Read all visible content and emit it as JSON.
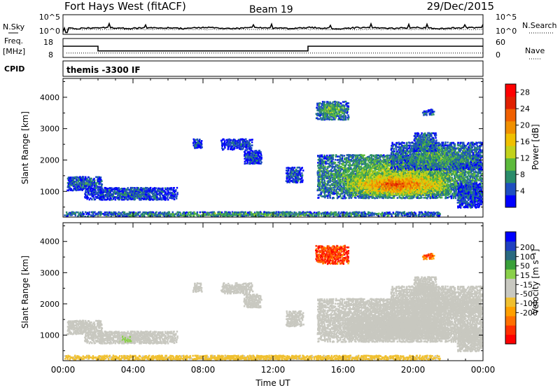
{
  "header": {
    "radar": "Fort Hays West (fitACF)",
    "beam": "Beam 19",
    "date": "29/Dec/2015"
  },
  "strip_sky": {
    "left_label": "N.Sky",
    "left_ticks": [
      "10^5",
      "10^0"
    ],
    "right_ticks": [
      "10^5",
      "10^0"
    ],
    "right_label": "N.Search"
  },
  "strip_freq": {
    "left_label_1": "Freq.",
    "left_label_2": "[MHz]",
    "left_ticks": [
      "18",
      "8"
    ],
    "right_ticks": [
      "60",
      "0"
    ],
    "right_label": "Nave",
    "freq_steps": [
      {
        "start": 0.0,
        "end": 2.0,
        "value": 15.2
      },
      {
        "start": 2.0,
        "end": 14.0,
        "value": 11.5
      },
      {
        "start": 14.0,
        "end": 24.0,
        "value": 15.2
      }
    ],
    "nave_level": 10.5
  },
  "cpid": {
    "label": "CPID",
    "text": "themis -3300 IF"
  },
  "chart_data": [
    {
      "type": "heatmap",
      "name": "power",
      "ylabel": "Slant Range [km]",
      "xlabel": "",
      "ylim": [
        180,
        4600
      ],
      "xlim": [
        0,
        24
      ],
      "y_ticks": [
        "1000",
        "2000",
        "3000",
        "4000"
      ],
      "x_ticks": [
        "00:00",
        "04:00",
        "08:00",
        "12:00",
        "16:00",
        "20:00",
        "00:00"
      ],
      "colorbar_label": "Power [dB]",
      "colorbar_ticks": [
        "4",
        "8",
        "12",
        "16",
        "20",
        "24",
        "28"
      ],
      "colorbar_range": [
        0,
        30
      ],
      "colors": [
        "#0000ff",
        "#1f4fc0",
        "#2a8c6a",
        "#5cba3c",
        "#c2d21c",
        "#f0c000",
        "#f09000",
        "#f06000",
        "#e02000",
        "#ff0000"
      ],
      "regions": [
        {
          "t0": 0.2,
          "t1": 2.2,
          "r0": 1050,
          "r1": 1500,
          "p": 7
        },
        {
          "t0": 1.2,
          "t1": 6.5,
          "r0": 750,
          "r1": 1150,
          "p": 6
        },
        {
          "t0": 0.0,
          "t1": 21.5,
          "r0": 200,
          "r1": 380,
          "p": 10
        },
        {
          "t0": 7.4,
          "t1": 7.9,
          "r0": 2400,
          "r1": 2700,
          "p": 5
        },
        {
          "t0": 9.0,
          "t1": 10.8,
          "r0": 2350,
          "r1": 2700,
          "p": 5
        },
        {
          "t0": 10.3,
          "t1": 11.3,
          "r0": 1900,
          "r1": 2350,
          "p": 5
        },
        {
          "t0": 12.7,
          "t1": 13.7,
          "r0": 1300,
          "r1": 1800,
          "p": 6
        },
        {
          "t0": 14.4,
          "t1": 16.3,
          "r0": 3300,
          "r1": 3900,
          "p": 12
        },
        {
          "t0": 14.5,
          "t1": 23.9,
          "r0": 800,
          "r1": 2200,
          "p": 14
        },
        {
          "t0": 16.2,
          "t1": 22.0,
          "r0": 900,
          "r1": 1600,
          "p": 24
        },
        {
          "t0": 18.7,
          "t1": 23.9,
          "r0": 1700,
          "r1": 2600,
          "p": 10
        },
        {
          "t0": 20.0,
          "t1": 21.3,
          "r0": 2300,
          "r1": 2900,
          "p": 9
        },
        {
          "t0": 20.5,
          "t1": 21.2,
          "r0": 3450,
          "r1": 3650,
          "p": 6
        },
        {
          "t0": 22.5,
          "t1": 23.9,
          "r0": 500,
          "r1": 1300,
          "p": 6
        }
      ]
    },
    {
      "type": "heatmap",
      "name": "velocity",
      "ylabel": "Slant Range [km]",
      "xlabel": "Time UT",
      "ylim": [
        180,
        4600
      ],
      "xlim": [
        0,
        24
      ],
      "y_ticks": [
        "1000",
        "2000",
        "3000",
        "4000"
      ],
      "x_ticks": [
        "00:00",
        "04:00",
        "08:00",
        "12:00",
        "16:00",
        "20:00",
        "00:00"
      ],
      "colorbar_label": "Velocity [m s⁻¹]",
      "colorbar_ticks": [
        "200",
        "100",
        "50",
        "15",
        "-15",
        "-50",
        "-100",
        "-200"
      ],
      "colorbar_range": [
        -250,
        250
      ],
      "colors": [
        "#ff0000",
        "#ff3000",
        "#ff7000",
        "#ffa000",
        "#f0c030",
        "#c8c8c0",
        "#c8c8c0",
        "#8ad04a",
        "#3aa03a",
        "#2a6a80",
        "#1f40c0",
        "#0000ff"
      ],
      "regions": [
        {
          "t0": 0.2,
          "t1": 2.2,
          "r0": 1050,
          "r1": 1500,
          "v": -20
        },
        {
          "t0": 1.2,
          "t1": 6.5,
          "r0": 750,
          "r1": 1150,
          "v": 0
        },
        {
          "t0": 3.2,
          "t1": 3.9,
          "r0": 800,
          "r1": 1000,
          "v": 40
        },
        {
          "t0": 0.0,
          "t1": 21.5,
          "r0": 200,
          "r1": 380,
          "v": -55
        },
        {
          "t0": 7.4,
          "t1": 7.9,
          "r0": 2400,
          "r1": 2700,
          "v": 0
        },
        {
          "t0": 9.0,
          "t1": 10.8,
          "r0": 2350,
          "r1": 2700,
          "v": 0
        },
        {
          "t0": 10.3,
          "t1": 11.3,
          "r0": 1900,
          "r1": 2350,
          "v": -20
        },
        {
          "t0": 12.7,
          "t1": 13.7,
          "r0": 1300,
          "r1": 1800,
          "v": 0
        },
        {
          "t0": 14.4,
          "t1": 16.3,
          "r0": 3300,
          "r1": 3900,
          "v": -180
        },
        {
          "t0": 14.5,
          "t1": 23.9,
          "r0": 800,
          "r1": 2200,
          "v": 0
        },
        {
          "t0": 16.2,
          "t1": 22.0,
          "r0": 900,
          "r1": 1600,
          "v": 0
        },
        {
          "t0": 18.7,
          "t1": 23.9,
          "r0": 1700,
          "r1": 2600,
          "v": 0
        },
        {
          "t0": 20.0,
          "t1": 21.3,
          "r0": 2300,
          "r1": 2900,
          "v": 0
        },
        {
          "t0": 20.5,
          "t1": 21.2,
          "r0": 3450,
          "r1": 3650,
          "v": -150
        },
        {
          "t0": 22.5,
          "t1": 23.9,
          "r0": 500,
          "r1": 1300,
          "v": 0
        }
      ]
    }
  ]
}
